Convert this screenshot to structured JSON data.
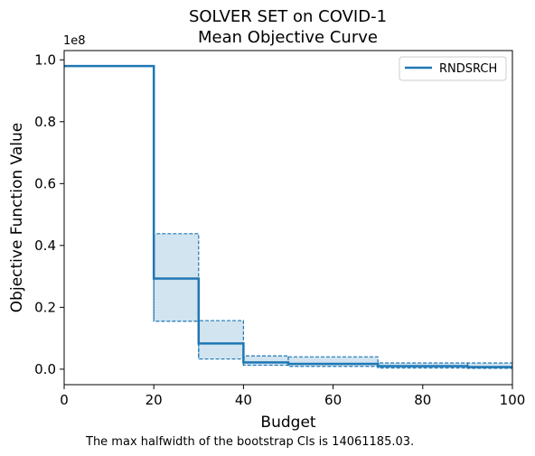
{
  "chart_data": {
    "type": "line",
    "title": "SOLVER SET on COVID-1",
    "subtitle": "Mean Objective Curve",
    "xlabel": "Budget",
    "ylabel": "Objective Function Value",
    "y_offset_label": "1e8",
    "xlim": [
      0,
      100
    ],
    "ylim": [
      -0.05,
      1.03
    ],
    "x_ticks": [
      0,
      20,
      40,
      60,
      80,
      100
    ],
    "y_ticks": [
      0.0,
      0.2,
      0.4,
      0.6,
      0.8,
      1.0
    ],
    "y_tick_labels": [
      "0.0",
      "0.2",
      "0.4",
      "0.6",
      "0.8",
      "1.0"
    ],
    "legend_placement": "top-right",
    "grid": false,
    "series": [
      {
        "name": "RNDSRCH",
        "color": "#1f77b4",
        "step": "post",
        "x": [
          0,
          20,
          30,
          40,
          50,
          70,
          90,
          100
        ],
        "mean": [
          0.98,
          0.293,
          0.083,
          0.022,
          0.017,
          0.01,
          0.007,
          0.007
        ],
        "ci_lower": [
          0.98,
          0.155,
          0.033,
          0.013,
          0.009,
          0.004,
          0.003,
          0.003
        ],
        "ci_upper": [
          0.98,
          0.438,
          0.157,
          0.043,
          0.04,
          0.02,
          0.02,
          0.02
        ]
      }
    ],
    "caption": "The max halfwidth of the bootstrap CIs is 14061185.03."
  }
}
